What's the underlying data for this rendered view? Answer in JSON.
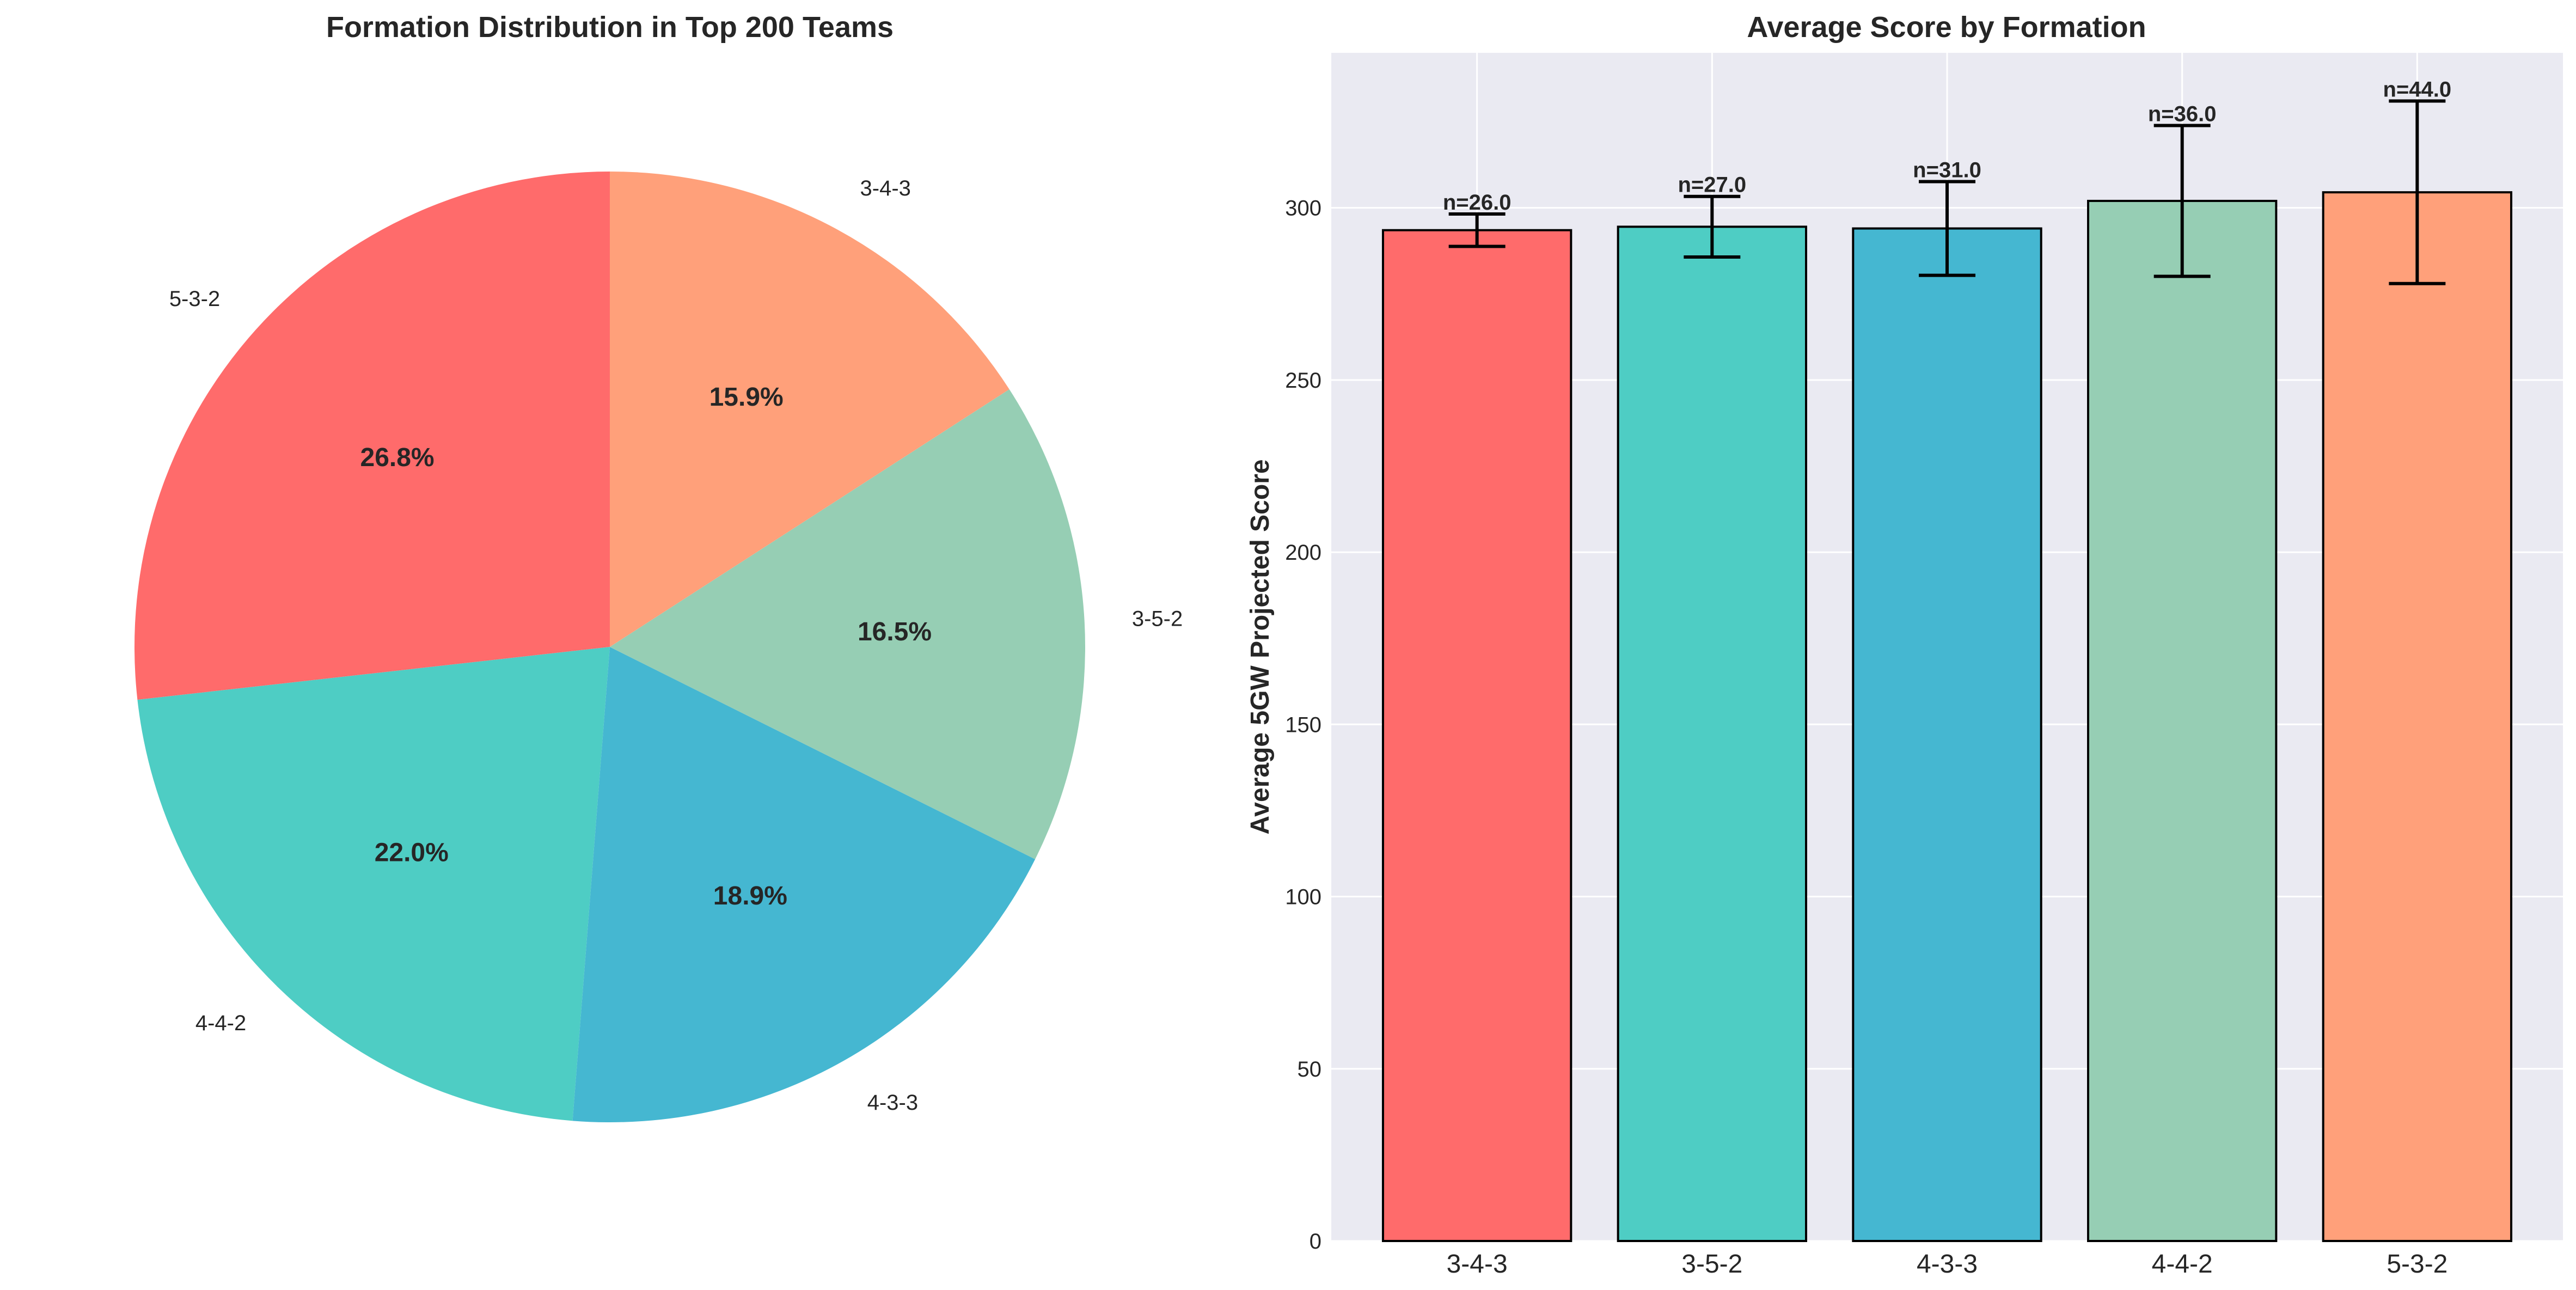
{
  "chart_data": [
    {
      "type": "pie",
      "title": "Formation Distribution in Top 200 Teams",
      "start_angle_deg": 90,
      "direction": "counterclockwise",
      "slices": [
        {
          "label": "5-3-2",
          "pct_label": "26.8%",
          "value": 26.8,
          "color": "#FF6B6B"
        },
        {
          "label": "4-4-2",
          "pct_label": "22.0%",
          "value": 22.0,
          "color": "#4ECDC4"
        },
        {
          "label": "4-3-3",
          "pct_label": "18.9%",
          "value": 18.9,
          "color": "#45B7D1"
        },
        {
          "label": "3-5-2",
          "pct_label": "16.5%",
          "value": 16.5,
          "color": "#96CEB4"
        },
        {
          "label": "3-4-3",
          "pct_label": "15.9%",
          "value": 15.9,
          "color": "#FFA07A"
        }
      ]
    },
    {
      "type": "bar",
      "title": "Average Score by Formation",
      "xlabel": "",
      "ylabel": "Average 5GW Projected Score",
      "ylim": [
        0,
        345
      ],
      "yticks": [
        0,
        50,
        100,
        150,
        200,
        250,
        300
      ],
      "ytick_labels": [
        "0",
        "50",
        "100",
        "150",
        "200",
        "250",
        "300"
      ],
      "grid": true,
      "categories": [
        "3-4-3",
        "3-5-2",
        "4-3-3",
        "4-4-2",
        "5-3-2"
      ],
      "values": [
        293.5,
        294.5,
        294.0,
        302.0,
        304.5
      ],
      "error": [
        4.7,
        8.8,
        13.6,
        21.9,
        26.5
      ],
      "counts": [
        "n=26.0",
        "n=27.0",
        "n=31.0",
        "n=36.0",
        "n=44.0"
      ],
      "colors": [
        "#FF6B6B",
        "#4ECDC4",
        "#45B7D1",
        "#96CEB4",
        "#FFA07A"
      ]
    }
  ]
}
